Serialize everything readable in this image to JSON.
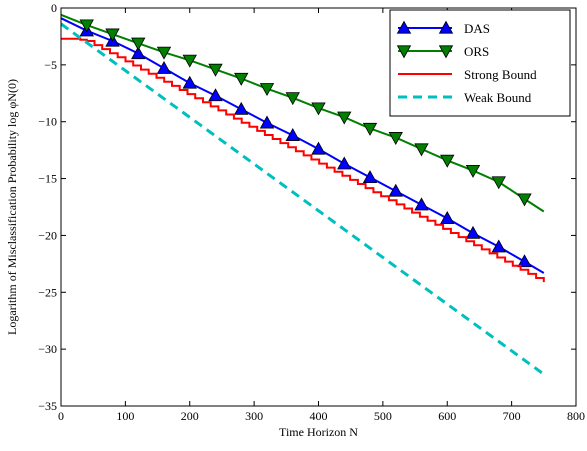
{
  "chart_data": {
    "type": "line",
    "xlabel": "Time Horizon N",
    "ylabel": "Logarithm of Misclassification Probability log φN(0)",
    "xlim": [
      0,
      800
    ],
    "ylim": [
      -35,
      0
    ],
    "xticks": [
      0,
      100,
      200,
      300,
      400,
      500,
      600,
      700,
      800
    ],
    "yticks": [
      0,
      -5,
      -10,
      -15,
      -20,
      -25,
      -30,
      -35
    ],
    "grid": false,
    "legend_position": "top-right",
    "series": [
      {
        "name": "DAS",
        "color": "#0000ff",
        "marker": "triangle-up",
        "marker_color": "#0000ff",
        "x": [
          0,
          40,
          80,
          120,
          160,
          200,
          240,
          280,
          320,
          360,
          400,
          440,
          480,
          520,
          560,
          600,
          640,
          680,
          720,
          750
        ],
        "y": [
          -0.9,
          -2.0,
          -2.9,
          -4.0,
          -5.3,
          -6.6,
          -7.7,
          -8.9,
          -10.1,
          -11.2,
          -12.4,
          -13.7,
          -14.9,
          -16.1,
          -17.3,
          -18.5,
          -19.8,
          -21.0,
          -22.3,
          -23.3
        ]
      },
      {
        "name": "ORS",
        "color": "#007f00",
        "marker": "triangle-down",
        "marker_color": "#007f00",
        "x": [
          0,
          40,
          80,
          120,
          160,
          200,
          240,
          280,
          320,
          360,
          400,
          440,
          480,
          520,
          560,
          600,
          640,
          680,
          720,
          750
        ],
        "y": [
          -0.6,
          -1.5,
          -2.3,
          -3.1,
          -3.9,
          -4.6,
          -5.4,
          -6.2,
          -7.1,
          -7.9,
          -8.8,
          -9.6,
          -10.6,
          -11.4,
          -12.4,
          -13.4,
          -14.3,
          -15.3,
          -16.8,
          -17.9
        ]
      },
      {
        "name": "Strong Bound",
        "color": "#ff0000",
        "marker": "none",
        "style": "solid",
        "x": [
          0,
          20,
          40,
          750
        ],
        "y": [
          -2.7,
          -2.7,
          -2.9,
          -24.1
        ]
      },
      {
        "name": "Weak Bound",
        "color": "#00bfbf",
        "marker": "none",
        "style": "dashed",
        "x": [
          0,
          750
        ],
        "y": [
          -1.4,
          -32.2
        ]
      }
    ]
  }
}
